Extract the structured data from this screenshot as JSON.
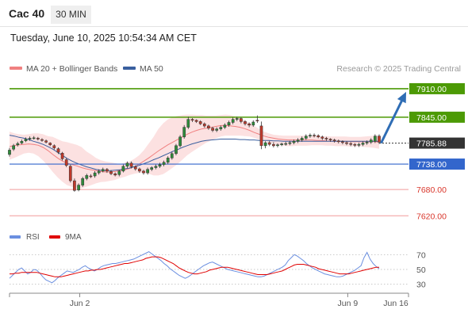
{
  "header": {
    "symbol": "Cac 40",
    "timeframe": "30 MIN",
    "datetime": "Tuesday, June 10, 2025 10:54:34 AM CET"
  },
  "legend": {
    "ma20": "MA 20 + Bollinger Bands",
    "ma50": "MA 50",
    "credit": "Research © 2025 Trading Central"
  },
  "colors": {
    "ma20": "#f08080",
    "ma50": "#3a5f9f",
    "bollinger": "#fbd7d7",
    "resistance": "#4c9a05",
    "support": "#3366cc",
    "lower": "#f19a9a",
    "current": "#333333",
    "candle_up": "#2e8b3a",
    "candle_down": "#c0392b",
    "arrow": "#2f6db5",
    "rsi": "#6b8fe0",
    "rsi_ma": "#e00000"
  },
  "chart_data": [
    {
      "type": "candlestick",
      "title": "",
      "ylim": [
        7588,
        7937
      ],
      "x_ticks": [
        {
          "label": "Jun 2",
          "pos": 0.19
        },
        {
          "label": "Jun 9",
          "pos": 0.915
        },
        {
          "label": "Jun 16",
          "pos": 1.19
        }
      ],
      "levels": [
        {
          "value": 7910.0,
          "label": "7910.00",
          "kind": "resistance"
        },
        {
          "value": 7845.0,
          "label": "7845.00",
          "kind": "resistance"
        },
        {
          "value": 7785.88,
          "label": "7785.88",
          "kind": "current"
        },
        {
          "value": 7738.0,
          "label": "7738.00",
          "kind": "support"
        },
        {
          "value": 7680.0,
          "label": "7680.00",
          "kind": "lower"
        },
        {
          "value": 7620.0,
          "label": "7620.00",
          "kind": "lower"
        }
      ],
      "arrow": {
        "from": 7788,
        "to": 7910
      },
      "close": [
        7770,
        7780,
        7785,
        7790,
        7795,
        7797,
        7798,
        7795,
        7792,
        7788,
        7782,
        7775,
        7765,
        7750,
        7735,
        7700,
        7678,
        7690,
        7705,
        7712,
        7710,
        7718,
        7722,
        7726,
        7722,
        7716,
        7713,
        7722,
        7733,
        7740,
        7732,
        7727,
        7722,
        7718,
        7726,
        7730,
        7733,
        7737,
        7742,
        7752,
        7762,
        7780,
        7800,
        7822,
        7840,
        7838,
        7835,
        7830,
        7825,
        7820,
        7815,
        7818,
        7822,
        7827,
        7833,
        7840,
        7842,
        7835,
        7830,
        7827,
        7834,
        7837,
        7780,
        7787,
        7783,
        7780,
        7782,
        7784,
        7785,
        7787,
        7790,
        7793,
        7797,
        7802,
        7804,
        7803,
        7800,
        7797,
        7795,
        7793,
        7791,
        7789,
        7787,
        7785,
        7783,
        7781,
        7783,
        7786,
        7788,
        7793,
        7802,
        7788
      ],
      "open": [
        7760,
        7772,
        7782,
        7786,
        7791,
        7795,
        7798,
        7797,
        7794,
        7791,
        7786,
        7780,
        7773,
        7763,
        7748,
        7733,
        7700,
        7679,
        7690,
        7705,
        7711,
        7711,
        7718,
        7722,
        7726,
        7721,
        7716,
        7714,
        7722,
        7733,
        7740,
        7732,
        7727,
        7722,
        7718,
        7726,
        7730,
        7733,
        7737,
        7742,
        7752,
        7762,
        7780,
        7800,
        7822,
        7840,
        7838,
        7835,
        7830,
        7825,
        7820,
        7815,
        7818,
        7822,
        7827,
        7833,
        7840,
        7842,
        7835,
        7830,
        7827,
        7838,
        7825,
        7780,
        7787,
        7783,
        7780,
        7782,
        7784,
        7785,
        7787,
        7790,
        7793,
        7797,
        7802,
        7804,
        7803,
        7800,
        7797,
        7795,
        7793,
        7791,
        7789,
        7787,
        7785,
        7783,
        7781,
        7783,
        7786,
        7788,
        7790,
        7802
      ],
      "high": [
        7775,
        7784,
        7789,
        7794,
        7799,
        7801,
        7802,
        7800,
        7797,
        7794,
        7788,
        7783,
        7776,
        7766,
        7752,
        7737,
        7705,
        7694,
        7709,
        7716,
        7715,
        7722,
        7726,
        7730,
        7729,
        7724,
        7719,
        7725,
        7737,
        7744,
        7744,
        7735,
        7730,
        7725,
        7730,
        7733,
        7737,
        7741,
        7746,
        7756,
        7766,
        7784,
        7804,
        7827,
        7846,
        7843,
        7840,
        7838,
        7833,
        7828,
        7823,
        7822,
        7826,
        7831,
        7837,
        7844,
        7846,
        7845,
        7838,
        7833,
        7838,
        7849,
        7835,
        7790,
        7791,
        7788,
        7785,
        7787,
        7789,
        7791,
        7794,
        7797,
        7801,
        7806,
        7808,
        7808,
        7806,
        7803,
        7800,
        7797,
        7796,
        7794,
        7792,
        7790,
        7788,
        7786,
        7787,
        7790,
        7792,
        7797,
        7806,
        7806
      ],
      "low": [
        7755,
        7768,
        7778,
        7783,
        7788,
        7791,
        7794,
        7792,
        7789,
        7785,
        7779,
        7771,
        7761,
        7746,
        7731,
        7696,
        7675,
        7676,
        7686,
        7701,
        7706,
        7707,
        7714,
        7719,
        7718,
        7713,
        7710,
        7710,
        7719,
        7729,
        7728,
        7723,
        7718,
        7714,
        7714,
        7722,
        7726,
        7729,
        7733,
        7738,
        7748,
        7758,
        7776,
        7796,
        7818,
        7834,
        7832,
        7827,
        7821,
        7816,
        7811,
        7811,
        7814,
        7818,
        7823,
        7829,
        7836,
        7831,
        7826,
        7822,
        7823,
        7832,
        7772,
        7774,
        7779,
        7776,
        7776,
        7779,
        7780,
        7781,
        7783,
        7786,
        7789,
        7793,
        7798,
        7799,
        7797,
        7793,
        7791,
        7789,
        7787,
        7785,
        7783,
        7781,
        7779,
        7777,
        7777,
        7779,
        7782,
        7784,
        7786,
        7784
      ],
      "ma20": [
        7778,
        7780,
        7782,
        7783,
        7784,
        7783,
        7781,
        7776,
        7769,
        7760,
        7752,
        7745,
        7740,
        7737,
        7734,
        7730,
        7727,
        7725,
        7723,
        7721,
        7720,
        7720,
        7721,
        7723,
        7725,
        7728,
        7732,
        7738,
        7745,
        7752,
        7760,
        7768,
        7775,
        7782,
        7788,
        7794,
        7800,
        7806,
        7811,
        7815,
        7818,
        7820,
        7822,
        7824,
        7826,
        7826,
        7825,
        7824,
        7822,
        7819,
        7815,
        7810,
        7806,
        7802,
        7799,
        7797,
        7795,
        7794,
        7793,
        7793,
        7793,
        7793,
        7793,
        7793,
        7792,
        7792,
        7791,
        7790,
        7790,
        7790,
        7790,
        7789,
        7789,
        7789,
        7789,
        7789,
        7789,
        7788
      ],
      "bb_upper": [
        7812,
        7808,
        7806,
        7805,
        7806,
        7808,
        7808,
        7806,
        7802,
        7800,
        7795,
        7790,
        7788,
        7785,
        7782,
        7777,
        7767,
        7760,
        7752,
        7747,
        7744,
        7742,
        7740,
        7738,
        7741,
        7744,
        7750,
        7758,
        7770,
        7785,
        7800,
        7818,
        7831,
        7840,
        7845,
        7848,
        7850,
        7851,
        7851,
        7850,
        7850,
        7849,
        7849,
        7849,
        7850,
        7851,
        7850,
        7847,
        7843,
        7838,
        7832,
        7825,
        7818,
        7812,
        7808,
        7805,
        7804,
        7803,
        7803,
        7803,
        7803,
        7803,
        7803,
        7802,
        7802,
        7802,
        7802,
        7801,
        7801,
        7801,
        7801,
        7800,
        7800,
        7800,
        7801,
        7802,
        7803,
        7803
      ],
      "bb_lower": [
        7748,
        7752,
        7757,
        7762,
        7764,
        7762,
        7756,
        7746,
        7734,
        7720,
        7708,
        7698,
        7690,
        7686,
        7684,
        7683,
        7686,
        7690,
        7694,
        7697,
        7698,
        7700,
        7702,
        7706,
        7709,
        7713,
        7716,
        7718,
        7718,
        7716,
        7712,
        7712,
        7715,
        7722,
        7730,
        7738,
        7748,
        7758,
        7766,
        7773,
        7780,
        7787,
        7792,
        7797,
        7801,
        7803,
        7803,
        7803,
        7803,
        7802,
        7801,
        7798,
        7794,
        7790,
        7787,
        7784,
        7782,
        7780,
        7779,
        7779,
        7780,
        7780,
        7780,
        7781,
        7781,
        7781,
        7780,
        7780,
        7779,
        7779,
        7779,
        7778,
        7778,
        7778,
        7777,
        7776,
        7775,
        7773
      ],
      "ma50": [
        7804,
        7802,
        7799,
        7797,
        7794,
        7790,
        7787,
        7783,
        7778,
        7772,
        7765,
        7758,
        7751,
        7745,
        7740,
        7736,
        7732,
        7729,
        7726,
        7724,
        7723,
        7723,
        7724,
        7725,
        7727,
        7729,
        7732,
        7735,
        7739,
        7743,
        7748,
        7752,
        7757,
        7762,
        7767,
        7771,
        7776,
        7780,
        7784,
        7787,
        7790,
        7792,
        7793,
        7794,
        7795,
        7795,
        7795,
        7795,
        7794,
        7794,
        7793,
        7793,
        7792,
        7792,
        7792,
        7791,
        7791,
        7790,
        7790,
        7790,
        7790,
        7790,
        7790,
        7790,
        7790,
        7790,
        7790,
        7790,
        7790,
        7790,
        7790,
        7790,
        7790,
        7790,
        7790,
        7790,
        7790,
        7790
      ]
    },
    {
      "type": "line",
      "title": "",
      "ylim": [
        20,
        80
      ],
      "y_ticks": [
        70,
        50,
        30
      ],
      "legend": {
        "rsi": "RSI",
        "ma": "9MA"
      },
      "rsi": [
        38,
        42,
        46,
        50,
        52,
        48,
        44,
        46,
        50,
        49,
        45,
        40,
        36,
        34,
        32,
        35,
        39,
        42,
        45,
        48,
        47,
        46,
        48,
        50,
        53,
        55,
        52,
        50,
        48,
        50,
        53,
        55,
        56,
        57,
        58,
        58,
        59,
        60,
        61,
        62,
        63,
        64,
        66,
        68,
        70,
        72,
        74,
        71,
        68,
        65,
        62,
        58,
        55,
        51,
        48,
        45,
        42,
        40,
        38,
        40,
        43,
        46,
        49,
        52,
        55,
        57,
        59,
        60,
        58,
        56,
        54,
        52,
        50,
        49,
        48,
        47,
        46,
        45,
        44,
        43,
        42,
        41,
        40,
        40,
        41,
        43,
        45,
        47,
        49,
        51,
        53,
        56,
        62,
        66,
        70,
        68,
        65,
        62,
        58,
        55,
        52,
        50,
        48,
        46,
        44,
        43,
        42,
        41,
        40,
        40,
        41,
        43,
        45,
        47,
        49,
        52,
        55,
        66,
        73,
        64,
        58,
        54,
        51
      ],
      "ma": [
        44,
        44,
        45,
        45,
        46,
        46,
        46,
        46,
        46,
        46,
        45,
        44,
        43,
        42,
        41,
        40,
        40,
        40,
        41,
        42,
        43,
        44,
        45,
        46,
        47,
        48,
        48,
        49,
        49,
        50,
        50,
        51,
        52,
        53,
        54,
        55,
        56,
        57,
        58,
        58,
        59,
        60,
        61,
        62,
        63,
        65,
        66,
        67,
        67,
        67,
        66,
        64,
        62,
        60,
        58,
        55,
        52,
        50,
        48,
        46,
        45,
        44,
        44,
        45,
        46,
        47,
        49,
        50,
        51,
        52,
        53,
        53,
        53,
        52,
        51,
        50,
        49,
        48,
        47,
        46,
        45,
        44,
        43,
        43,
        43,
        43,
        44,
        45,
        46,
        47,
        48,
        50,
        52,
        54,
        56,
        57,
        57,
        57,
        56,
        55,
        54,
        53,
        51,
        50,
        49,
        48,
        47,
        46,
        45,
        44,
        44,
        44,
        44,
        45,
        46,
        47,
        48,
        49,
        50,
        51,
        52,
        53,
        53
      ]
    }
  ]
}
